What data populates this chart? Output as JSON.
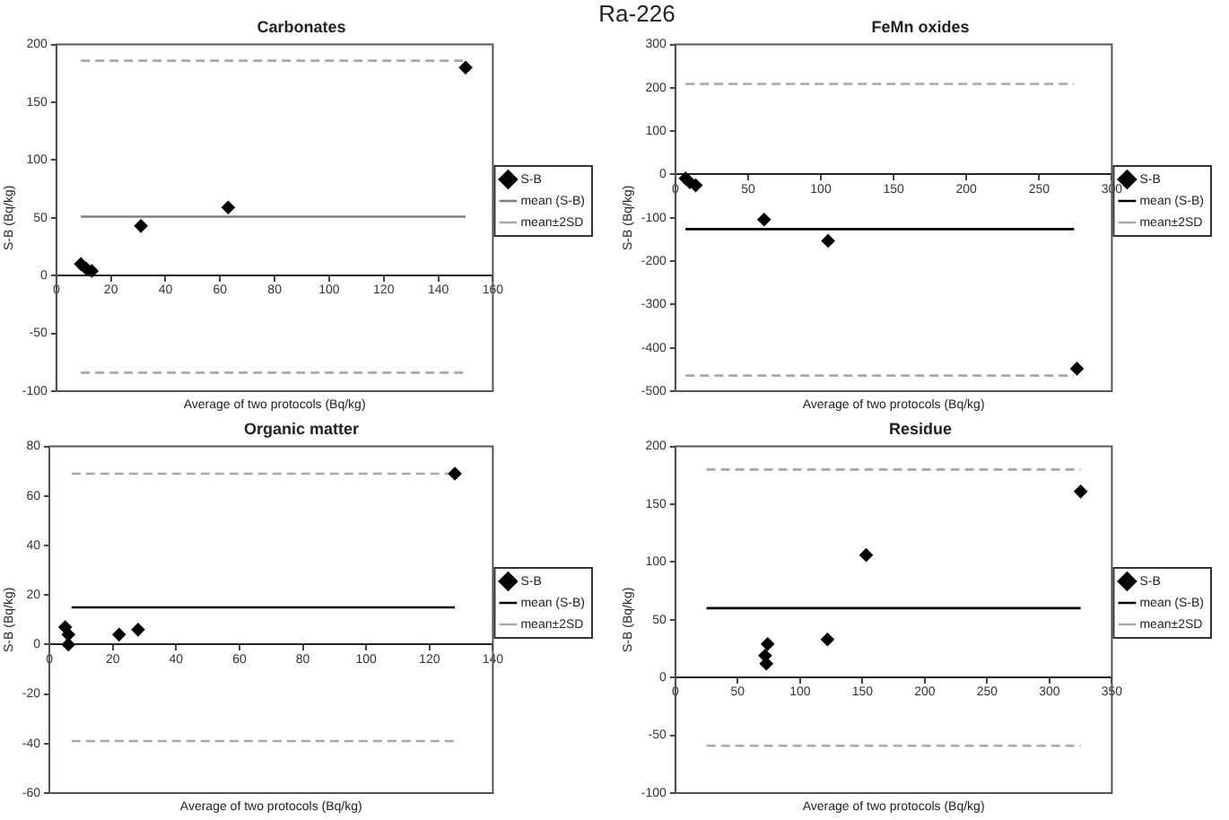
{
  "chart_data": [
    {
      "type": "scatter",
      "title": "Carbonates",
      "annotations": [
        "Ra-226"
      ],
      "xlabel": "Average of two protocols (Bq/kg)",
      "ylabel": "S-B (Bq/kg)",
      "xlim": [
        0,
        160
      ],
      "xticks": [
        0,
        20,
        40,
        60,
        80,
        100,
        120,
        140,
        160
      ],
      "ylim": [
        -100,
        200
      ],
      "yticks": [
        -100,
        -50,
        0,
        50,
        100,
        150,
        200
      ],
      "grid": false,
      "legend": "right",
      "series": [
        {
          "name": "S-B",
          "type": "scatter",
          "marker": "diamond",
          "color": "#000000",
          "x": [
            9,
            11,
            13,
            31,
            63,
            150
          ],
          "values": [
            10,
            6,
            4,
            43,
            59,
            180
          ]
        },
        {
          "name": "mean (S-B)",
          "type": "line",
          "line_style": "solid",
          "color": "#808080",
          "x": [
            9,
            150
          ],
          "values": [
            51,
            51
          ]
        },
        {
          "name": "mean±2SD",
          "type": "line",
          "line_style": "dashed",
          "color": "#a8a8a8",
          "x": [
            9,
            150
          ],
          "values": [
            186,
            186
          ]
        },
        {
          "type": "line",
          "line_style": "dashed",
          "color": "#a8a8a8",
          "x": [
            9,
            150
          ],
          "values": [
            -84,
            -84
          ]
        }
      ]
    },
    {
      "type": "scatter",
      "title": "FeMn oxides",
      "xlabel": "Average of two protocols (Bq/kg)",
      "ylabel": "S-B (Bq/kg)",
      "xlim": [
        0,
        300
      ],
      "xticks": [
        0,
        50,
        100,
        150,
        200,
        250,
        300
      ],
      "ylim": [
        -500,
        300
      ],
      "yticks": [
        -500,
        -400,
        -300,
        -200,
        -100,
        0,
        100,
        200,
        300
      ],
      "grid": false,
      "legend": "right",
      "series": [
        {
          "name": "S-B",
          "type": "scatter",
          "marker": "diamond",
          "color": "#000000",
          "x": [
            7,
            10,
            14,
            61,
            105,
            276
          ],
          "values": [
            -9,
            -18,
            -25,
            -104,
            -153,
            -448
          ]
        },
        {
          "name": "mean (S-B)",
          "type": "line",
          "line_style": "solid",
          "color": "#000000",
          "x": [
            7,
            274
          ],
          "values": [
            -126,
            -126
          ]
        },
        {
          "name": "mean±2SD",
          "type": "line",
          "line_style": "dashed",
          "color": "#a8a8a8",
          "x": [
            7,
            274
          ],
          "values": [
            209,
            209
          ]
        },
        {
          "type": "line",
          "line_style": "dashed",
          "color": "#a8a8a8",
          "x": [
            7,
            274
          ],
          "values": [
            -464,
            -464
          ]
        }
      ]
    },
    {
      "type": "scatter",
      "title": "Organic matter",
      "xlabel": "Average of two protocols (Bq/kg)",
      "ylabel": "S-B (Bq/kg)",
      "xlim": [
        0,
        140
      ],
      "xticks": [
        0,
        20,
        40,
        60,
        80,
        100,
        120,
        140
      ],
      "ylim": [
        -60,
        80
      ],
      "yticks": [
        -60,
        -40,
        -20,
        0,
        20,
        40,
        60,
        80
      ],
      "grid": false,
      "legend": "right",
      "series": [
        {
          "name": "S-B",
          "type": "scatter",
          "marker": "diamond",
          "color": "#000000",
          "x": [
            5,
            6,
            6,
            22,
            28,
            128
          ],
          "values": [
            7,
            4,
            0,
            4,
            6,
            69
          ]
        },
        {
          "name": "mean (S-B)",
          "type": "line",
          "line_style": "solid",
          "color": "#000000",
          "x": [
            7,
            128
          ],
          "values": [
            15,
            15
          ]
        },
        {
          "name": "mean±2SD",
          "type": "line",
          "line_style": "dashed",
          "color": "#a8a8a8",
          "x": [
            7,
            128
          ],
          "values": [
            69,
            69
          ]
        },
        {
          "type": "line",
          "line_style": "dashed",
          "color": "#a8a8a8",
          "x": [
            7,
            128
          ],
          "values": [
            -39,
            -39
          ]
        }
      ]
    },
    {
      "type": "scatter",
      "title": "Residue",
      "xlabel": "Average of two protocols (Bq/kg)",
      "ylabel": "S-B (Bq/kg)",
      "xlim": [
        0,
        350
      ],
      "xticks": [
        0,
        50,
        100,
        150,
        200,
        250,
        300,
        350
      ],
      "ylim": [
        -100,
        200
      ],
      "yticks": [
        -100,
        -50,
        0,
        50,
        100,
        150,
        200
      ],
      "grid": false,
      "legend": "right",
      "series": [
        {
          "name": "S-B",
          "type": "scatter",
          "marker": "diamond",
          "color": "#000000",
          "x": [
            72,
            73,
            74,
            122,
            153,
            325
          ],
          "values": [
            19,
            12,
            29,
            33,
            106,
            161
          ]
        },
        {
          "name": "mean (S-B)",
          "type": "line",
          "line_style": "solid",
          "color": "#000000",
          "x": [
            25,
            325
          ],
          "values": [
            60,
            60
          ]
        },
        {
          "name": "mean±2SD",
          "type": "line",
          "line_style": "dashed",
          "color": "#a8a8a8",
          "x": [
            25,
            325
          ],
          "values": [
            180,
            180
          ]
        },
        {
          "type": "line",
          "line_style": "dashed",
          "color": "#a8a8a8",
          "x": [
            25,
            325
          ],
          "values": [
            -59,
            -59
          ]
        }
      ]
    }
  ]
}
